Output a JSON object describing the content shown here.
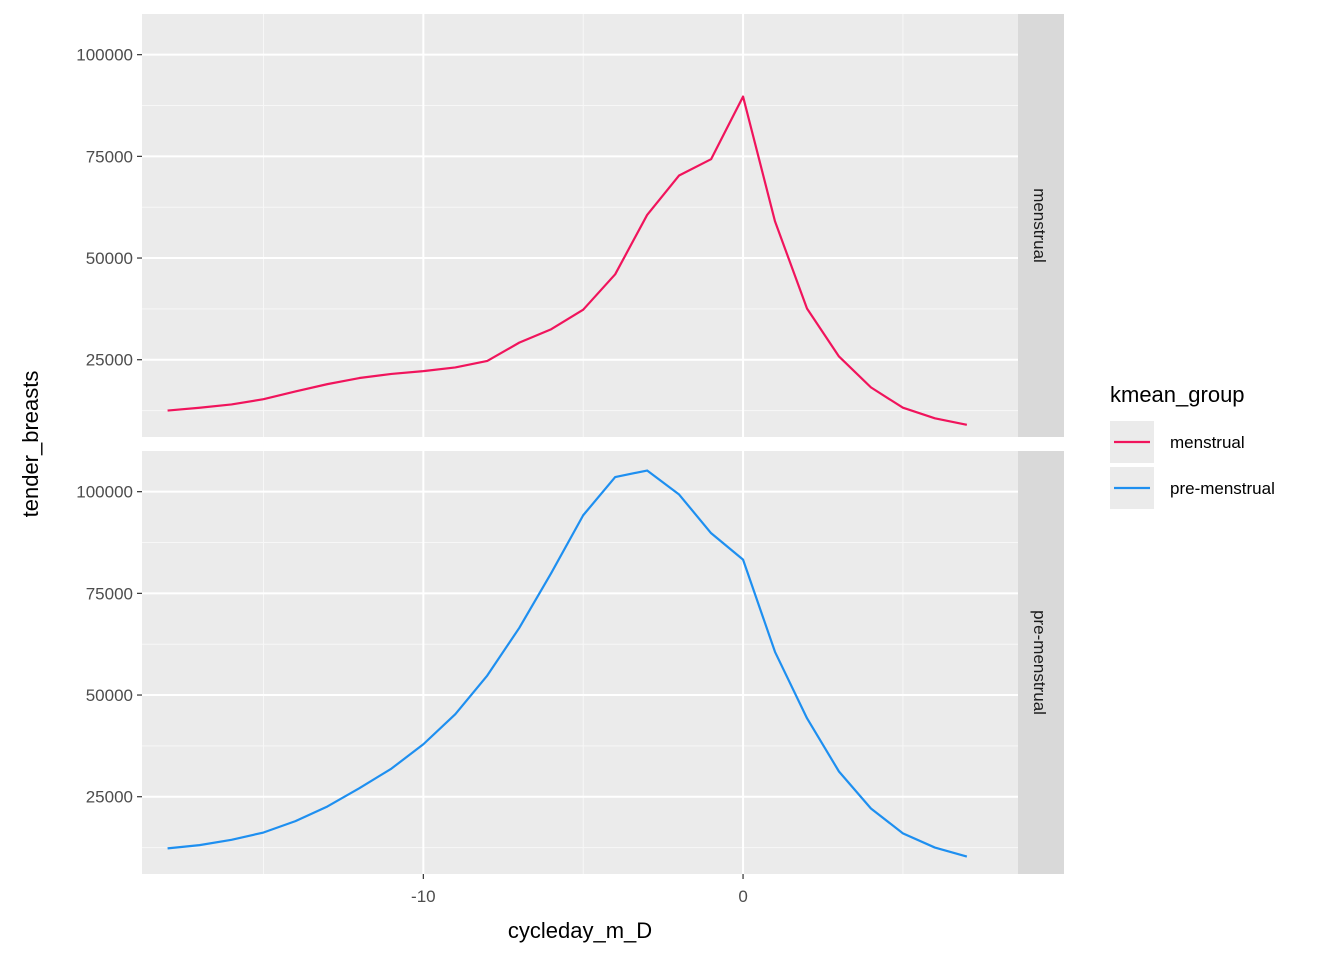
{
  "chart_data": {
    "type": "line",
    "xlabel": "cycleday_m_D",
    "ylabel": "tender_breasts",
    "xlim": [
      -18.8,
      8.6
    ],
    "ylim": [
      6000,
      110000
    ],
    "x_ticks": [
      -10,
      0
    ],
    "x_tick_labels": [
      "-10",
      "0"
    ],
    "y_ticks": [
      25000,
      50000,
      75000,
      100000
    ],
    "y_tick_labels": [
      "25000",
      "50000",
      "75000",
      "100000"
    ],
    "grid": true,
    "legend": {
      "title": "kmean_group",
      "position": "right"
    },
    "facets": [
      {
        "label": "menstrual",
        "color": "#F0145C",
        "x": [
          -18,
          -17,
          -16,
          -15,
          -14,
          -13,
          -12,
          -11,
          -10,
          -9,
          -8,
          -7,
          -6,
          -5,
          -4,
          -3,
          -2,
          -1,
          0,
          1,
          2,
          3,
          4,
          5,
          6,
          7
        ],
        "y": [
          12500,
          13200,
          14000,
          15300,
          17200,
          19000,
          20500,
          21500,
          22200,
          23100,
          24700,
          29200,
          32500,
          37300,
          46000,
          60600,
          70300,
          74300,
          89700,
          59000,
          37600,
          25800,
          18200,
          13200,
          10600,
          9000
        ]
      },
      {
        "label": "pre-menstrual",
        "color": "#1E8FF0",
        "x": [
          -18,
          -17,
          -16,
          -15,
          -14,
          -13,
          -12,
          -11,
          -10,
          -9,
          -8,
          -7,
          -6,
          -5,
          -4,
          -3,
          -2,
          -1,
          0,
          1,
          2,
          3,
          4,
          5,
          6,
          7
        ],
        "y": [
          12300,
          13100,
          14400,
          16200,
          19000,
          22600,
          27100,
          31900,
          37900,
          45300,
          54800,
          66500,
          80000,
          94200,
          103600,
          105200,
          99300,
          89800,
          83300,
          60600,
          44300,
          31200,
          22100,
          16000,
          12500,
          10300
        ]
      }
    ]
  }
}
